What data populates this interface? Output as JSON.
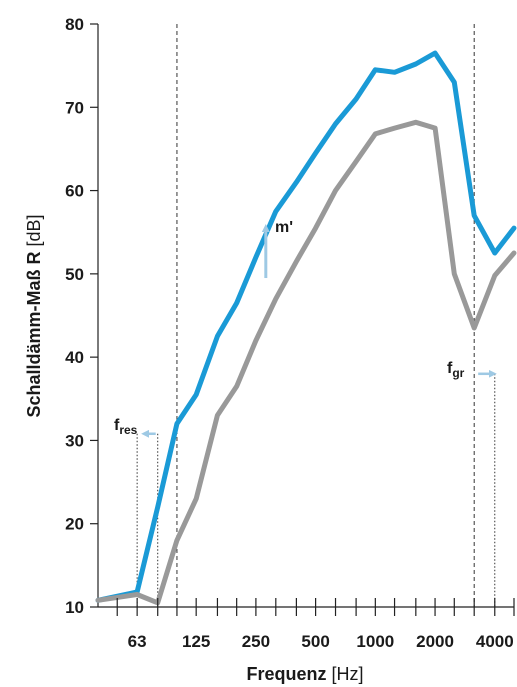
{
  "chart_data": {
    "type": "line",
    "xscale": "log",
    "xlim": [
      40,
      5000
    ],
    "ylim": [
      10,
      80
    ],
    "yticks": [
      10,
      20,
      30,
      40,
      50,
      60,
      70,
      80
    ],
    "ytick_labels": [
      "10",
      "20",
      "30",
      "40",
      "50",
      "60",
      "70",
      "80"
    ],
    "x_minor_ticks": [
      50,
      63,
      80,
      100,
      125,
      160,
      200,
      250,
      315,
      400,
      500,
      630,
      800,
      1000,
      1250,
      1600,
      2000,
      2500,
      3150,
      4000,
      5000
    ],
    "xtick_labels": [
      {
        "x": 63,
        "label": "63"
      },
      {
        "x": 125,
        "label": "125"
      },
      {
        "x": 250,
        "label": "250"
      },
      {
        "x": 500,
        "label": "500"
      },
      {
        "x": 1000,
        "label": "1000"
      },
      {
        "x": 2000,
        "label": "2000"
      },
      {
        "x": 4000,
        "label": "4000"
      }
    ],
    "xlabel_bold": "Frequenz",
    "xlabel_unit": " [Hz]",
    "ylabel_bold": "Schalldämm-Maß R",
    "ylabel_unit": " [dB]",
    "series": [
      {
        "color": "#1a9ad6",
        "x": [
          40,
          63,
          80,
          100,
          125,
          160,
          200,
          250,
          315,
          400,
          500,
          630,
          800,
          1000,
          1250,
          1600,
          2000,
          2500,
          3150,
          4000,
          5000
        ],
        "y": [
          10.8,
          11.8,
          22,
          32,
          35.5,
          42.5,
          46.5,
          52,
          57.5,
          61,
          64.5,
          68,
          71,
          74.5,
          74.2,
          75.2,
          76.5,
          73,
          57,
          52.5,
          55.5
        ]
      },
      {
        "color": "#999999",
        "x": [
          40,
          63,
          80,
          100,
          125,
          160,
          200,
          250,
          315,
          400,
          500,
          630,
          800,
          1000,
          1250,
          1600,
          2000,
          2500,
          3150,
          4000,
          5000
        ],
        "y": [
          10.8,
          11.5,
          10.5,
          18,
          23,
          33,
          36.5,
          42,
          47,
          51.5,
          55.5,
          60,
          63.5,
          66.8,
          67.5,
          68.2,
          67.5,
          50,
          43.5,
          49.8,
          52.5
        ]
      }
    ],
    "vlines": [
      {
        "x": 100,
        "style": "dashed"
      },
      {
        "x": 3150,
        "style": "dashed"
      },
      {
        "x": 63,
        "style": "dotted",
        "y_top": 30.8
      },
      {
        "x": 80,
        "style": "dotted",
        "y_top": 30.8
      },
      {
        "x": 4000,
        "style": "dotted",
        "y_top": 38
      }
    ],
    "annotations": {
      "fres": {
        "main": "f",
        "sub": "res"
      },
      "fgr": {
        "main": "f",
        "sub": "gr"
      },
      "mprime": "m'"
    },
    "arrow_color": "#9ec9e4"
  }
}
